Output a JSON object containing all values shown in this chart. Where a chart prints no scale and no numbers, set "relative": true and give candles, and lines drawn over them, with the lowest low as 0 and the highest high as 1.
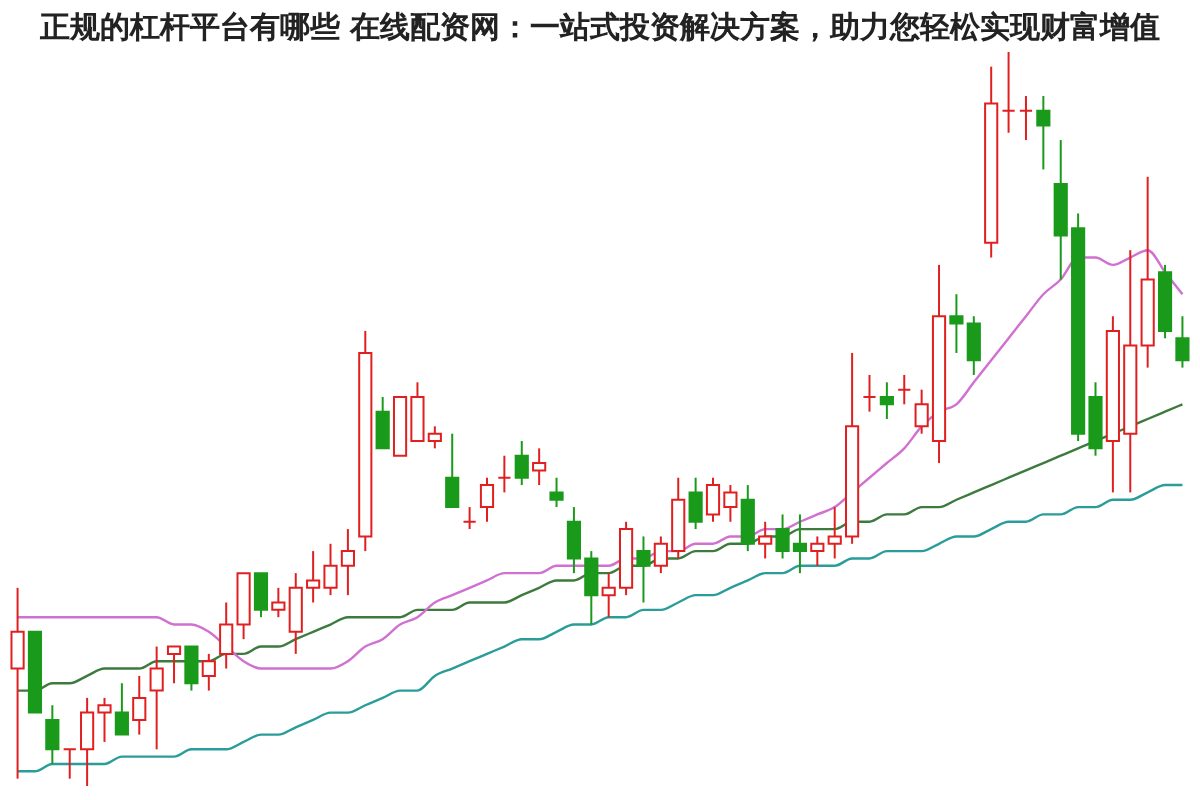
{
  "chart_data": {
    "type": "candlestick",
    "title": "正规的杠杆平台有哪些 在线配资网：一站式投资解决方案，助力您轻松实现财富增值",
    "relative": true,
    "categories": [
      null,
      null,
      null,
      null,
      null,
      null,
      null,
      null,
      null,
      null,
      null,
      null,
      null,
      null,
      null,
      null,
      null,
      null,
      null,
      null,
      null,
      null,
      null,
      null,
      null,
      null,
      null,
      null,
      null,
      null,
      null,
      null,
      null,
      null,
      null,
      null,
      null,
      null,
      null,
      null,
      null,
      null,
      null,
      null,
      null,
      null,
      null,
      null,
      null,
      null,
      null,
      null,
      null,
      null,
      null,
      null,
      null,
      null,
      null,
      null,
      null,
      null,
      null,
      null,
      null,
      null,
      null,
      null
    ],
    "ohlc": [
      [
        0.16,
        0.27,
        0.01,
        0.21
      ],
      [
        0.21,
        0.21,
        0.1,
        0.1
      ],
      [
        0.09,
        0.11,
        0.03,
        0.05
      ],
      [
        0.05,
        0.05,
        0.01,
        0.05
      ],
      [
        0.05,
        0.12,
        0,
        0.1
      ],
      [
        0.1,
        0.12,
        0.06,
        0.11
      ],
      [
        0.1,
        0.14,
        0.07,
        0.07
      ],
      [
        0.09,
        0.15,
        0.07,
        0.12
      ],
      [
        0.13,
        0.19,
        0.05,
        0.16
      ],
      [
        0.18,
        0.19,
        0.14,
        0.19
      ],
      [
        0.19,
        0.19,
        0.13,
        0.14
      ],
      [
        0.15,
        0.18,
        0.13,
        0.17
      ],
      [
        0.18,
        0.25,
        0.16,
        0.22
      ],
      [
        0.22,
        0.29,
        0.2,
        0.29
      ],
      [
        0.29,
        0.29,
        0.23,
        0.24
      ],
      [
        0.24,
        0.27,
        0.23,
        0.25
      ],
      [
        0.21,
        0.29,
        0.18,
        0.27
      ],
      [
        0.27,
        0.32,
        0.25,
        0.28
      ],
      [
        0.27,
        0.33,
        0.26,
        0.3
      ],
      [
        0.3,
        0.35,
        0.26,
        0.32
      ],
      [
        0.34,
        0.62,
        0.32,
        0.59
      ],
      [
        0.51,
        0.53,
        0.46,
        0.46
      ],
      [
        0.45,
        0.53,
        0.45,
        0.53
      ],
      [
        0.47,
        0.55,
        0.47,
        0.53
      ],
      [
        0.47,
        0.49,
        0.46,
        0.48
      ],
      [
        0.42,
        0.48,
        0.38,
        0.38
      ],
      [
        0.36,
        0.38,
        0.35,
        0.36
      ],
      [
        0.38,
        0.42,
        0.36,
        0.41
      ],
      [
        0.42,
        0.45,
        0.4,
        0.42
      ],
      [
        0.45,
        0.47,
        0.41,
        0.42
      ],
      [
        0.43,
        0.46,
        0.41,
        0.44
      ],
      [
        0.4,
        0.42,
        0.38,
        0.39
      ],
      [
        0.36,
        0.38,
        0.29,
        0.31
      ],
      [
        0.31,
        0.32,
        0.22,
        0.26
      ],
      [
        0.26,
        0.29,
        0.23,
        0.27
      ],
      [
        0.27,
        0.36,
        0.26,
        0.35
      ],
      [
        0.32,
        0.34,
        0.25,
        0.3
      ],
      [
        0.3,
        0.34,
        0.29,
        0.33
      ],
      [
        0.32,
        0.42,
        0.31,
        0.39
      ],
      [
        0.4,
        0.42,
        0.35,
        0.36
      ],
      [
        0.37,
        0.42,
        0.36,
        0.41
      ],
      [
        0.38,
        0.41,
        0.36,
        0.4
      ],
      [
        0.39,
        0.41,
        0.32,
        0.33
      ],
      [
        0.33,
        0.36,
        0.31,
        0.34
      ],
      [
        0.35,
        0.37,
        0.31,
        0.32
      ],
      [
        0.33,
        0.37,
        0.29,
        0.32
      ],
      [
        0.32,
        0.34,
        0.3,
        0.33
      ],
      [
        0.33,
        0.38,
        0.31,
        0.34
      ],
      [
        0.34,
        0.59,
        0.33,
        0.49
      ],
      [
        0.53,
        0.56,
        0.51,
        0.53
      ],
      [
        0.53,
        0.55,
        0.5,
        0.52
      ],
      [
        0.54,
        0.56,
        0.52,
        0.54
      ],
      [
        0.49,
        0.54,
        0.48,
        0.52
      ],
      [
        0.47,
        0.71,
        0.44,
        0.64
      ],
      [
        0.64,
        0.67,
        0.59,
        0.63
      ],
      [
        0.63,
        0.64,
        0.56,
        0.58
      ],
      [
        0.74,
        0.98,
        0.72,
        0.93
      ],
      [
        0.92,
        1,
        0.89,
        0.92
      ],
      [
        0.92,
        0.94,
        0.88,
        0.92
      ],
      [
        0.92,
        0.94,
        0.84,
        0.9
      ],
      [
        0.82,
        0.88,
        0.69,
        0.75
      ],
      [
        0.76,
        0.78,
        0.47,
        0.48
      ],
      [
        0.53,
        0.55,
        0.45,
        0.46
      ],
      [
        0.47,
        0.64,
        0.4,
        0.62
      ],
      [
        0.48,
        0.73,
        0.4,
        0.6
      ],
      [
        0.6,
        0.83,
        0.57,
        0.69
      ],
      [
        0.7,
        0.71,
        0.61,
        0.62
      ],
      [
        0.61,
        0.64,
        0.57,
        0.58
      ]
    ],
    "series": [
      {
        "type": "line",
        "color": "#2a9d9a",
        "values": [
          0.02,
          0.02,
          0.03,
          0.03,
          0.03,
          0.03,
          0.04,
          0.04,
          0.04,
          0.04,
          0.05,
          0.05,
          0.05,
          0.06,
          0.07,
          0.07,
          0.08,
          0.09,
          0.1,
          0.1,
          0.11,
          0.12,
          0.13,
          0.13,
          0.15,
          0.16,
          0.17,
          0.18,
          0.19,
          0.2,
          0.2,
          0.21,
          0.22,
          0.22,
          0.23,
          0.23,
          0.24,
          0.24,
          0.25,
          0.26,
          0.26,
          0.27,
          0.28,
          0.29,
          0.29,
          0.3,
          0.3,
          0.3,
          0.31,
          0.31,
          0.32,
          0.32,
          0.32,
          0.33,
          0.34,
          0.34,
          0.35,
          0.36,
          0.36,
          0.37,
          0.37,
          0.38,
          0.38,
          0.39,
          0.39,
          0.4,
          0.41,
          0.41
        ]
      },
      {
        "type": "line",
        "color": "#3d7a3d",
        "values": [
          0.13,
          0.13,
          0.14,
          0.14,
          0.15,
          0.16,
          0.16,
          0.16,
          0.17,
          0.17,
          0.17,
          0.17,
          0.18,
          0.18,
          0.19,
          0.19,
          0.2,
          0.21,
          0.22,
          0.23,
          0.23,
          0.23,
          0.23,
          0.24,
          0.24,
          0.24,
          0.25,
          0.25,
          0.25,
          0.26,
          0.27,
          0.28,
          0.28,
          0.29,
          0.29,
          0.3,
          0.3,
          0.31,
          0.31,
          0.32,
          0.32,
          0.33,
          0.33,
          0.34,
          0.34,
          0.35,
          0.35,
          0.35,
          0.36,
          0.36,
          0.37,
          0.37,
          0.38,
          0.38,
          0.39,
          0.4,
          0.41,
          0.42,
          0.43,
          0.44,
          0.45,
          0.46,
          0.47,
          0.48,
          0.49,
          0.5,
          0.51,
          0.52
        ]
      },
      {
        "type": "line",
        "color": "#d070d0",
        "values": [
          0.23,
          0.23,
          0.23,
          0.23,
          0.23,
          0.23,
          0.23,
          0.23,
          0.23,
          0.22,
          0.22,
          0.21,
          0.19,
          0.17,
          0.16,
          0.16,
          0.16,
          0.16,
          0.16,
          0.17,
          0.19,
          0.2,
          0.22,
          0.23,
          0.25,
          0.26,
          0.27,
          0.28,
          0.29,
          0.29,
          0.29,
          0.3,
          0.3,
          0.3,
          0.3,
          0.31,
          0.31,
          0.32,
          0.32,
          0.33,
          0.33,
          0.34,
          0.34,
          0.35,
          0.35,
          0.36,
          0.37,
          0.38,
          0.4,
          0.42,
          0.44,
          0.46,
          0.49,
          0.51,
          0.52,
          0.55,
          0.58,
          0.61,
          0.64,
          0.67,
          0.69,
          0.72,
          0.72,
          0.71,
          0.72,
          0.73,
          0.7,
          0.67
        ]
      }
    ]
  }
}
